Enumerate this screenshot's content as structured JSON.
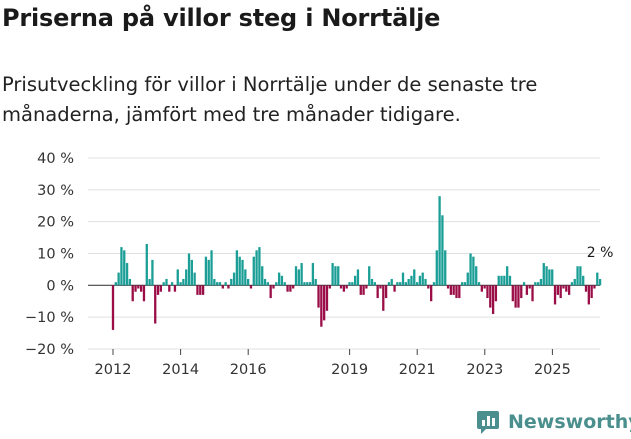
{
  "title": "Priserna på villor steg i Norrtälje",
  "subtitle_lines": [
    "Prisutveckling för villor i Norrtälje under de senaste tre",
    "månaderna, jämfört med tre månader tidigare."
  ],
  "logo": {
    "text": "Newsworthy",
    "icon": "newsworthy-logo-icon",
    "color": "#4a8f8d"
  },
  "colors": {
    "positive": "#1a9e96",
    "negative": "#9b0d47",
    "grid": "#e0e0e0",
    "zero": "#444444"
  },
  "chart_data": {
    "type": "bar",
    "title": "Priserna på villor steg i Norrtälje",
    "xlabel": "",
    "ylabel": "",
    "ylim": [
      -20,
      40
    ],
    "yticks": [
      40,
      30,
      20,
      10,
      0,
      -10,
      -20
    ],
    "ytick_labels": [
      "40 %",
      "30 %",
      "20 %",
      "10 %",
      "0 %",
      "−10 %",
      "−20 %"
    ],
    "x_start": 2012.0,
    "x_step": 0.0833,
    "xticks": [
      2012,
      2014,
      2016,
      2019,
      2021,
      2023,
      2025
    ],
    "xtick_labels": [
      "2012",
      "2014",
      "2016",
      "2019",
      "2021",
      "2023",
      "2025"
    ],
    "values": [
      -14,
      1,
      4,
      12,
      11,
      7,
      2,
      -5,
      -2,
      -1,
      -2,
      -5,
      13,
      2,
      8,
      -12,
      -3,
      -2,
      1,
      2,
      -2,
      1,
      -2,
      5,
      1,
      2,
      5,
      10,
      8,
      4,
      -3,
      -3,
      -3,
      9,
      8,
      11,
      2,
      1,
      1,
      -1,
      1,
      -1,
      2,
      4,
      11,
      9,
      8,
      5,
      2,
      -1,
      9,
      11,
      12,
      6,
      2,
      1,
      -4,
      -1,
      1,
      4,
      3,
      1,
      -2,
      -2,
      -1,
      6,
      5,
      7,
      1,
      1,
      1,
      7,
      2,
      -7,
      -13,
      -11,
      -8,
      -1,
      7,
      6,
      6,
      -1,
      -2,
      -1,
      1,
      1,
      3,
      5,
      -3,
      -3,
      -1,
      6,
      2,
      1,
      -4,
      -1,
      -8,
      -4,
      1,
      2,
      -2,
      1,
      1,
      4,
      1,
      2,
      3,
      5,
      1,
      3,
      4,
      2,
      -1,
      -5,
      1,
      11,
      28,
      22,
      11,
      -1,
      -3,
      -3,
      -4,
      -4,
      1,
      1,
      4,
      10,
      9,
      6,
      1,
      -2,
      -1,
      -4,
      -7,
      -9,
      -5,
      3,
      3,
      3,
      6,
      3,
      -5,
      -7,
      -7,
      -4,
      1,
      -3,
      -1,
      -5,
      1,
      1,
      2,
      7,
      6,
      5,
      5,
      -6,
      -3,
      -4,
      -1,
      -2,
      -3,
      1,
      2,
      6,
      6,
      3,
      -2,
      -6,
      -4,
      -1,
      4,
      2
    ],
    "last_value_label": "2 %"
  }
}
